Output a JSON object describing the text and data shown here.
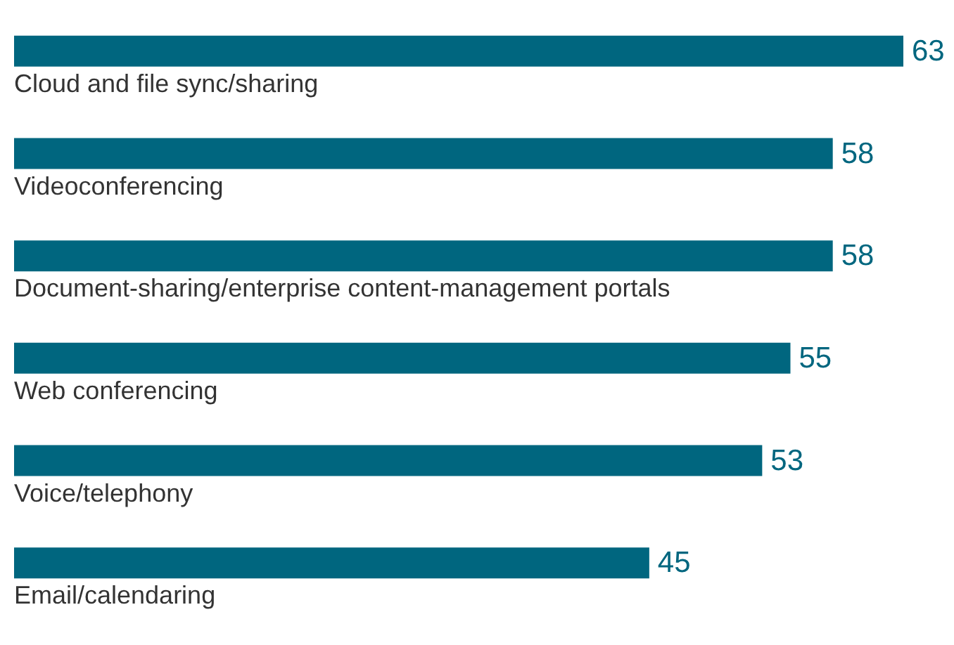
{
  "chart_data": {
    "type": "bar",
    "orientation": "horizontal",
    "categories": [
      "Cloud and file sync/sharing",
      "Videoconferencing",
      "Document-sharing/enterprise content-management portals",
      "Web conferencing",
      "Voice/telephony",
      "Email/calendaring"
    ],
    "values": [
      63,
      58,
      58,
      55,
      53,
      45
    ],
    "color": "#00667f",
    "data_labels": true
  }
}
